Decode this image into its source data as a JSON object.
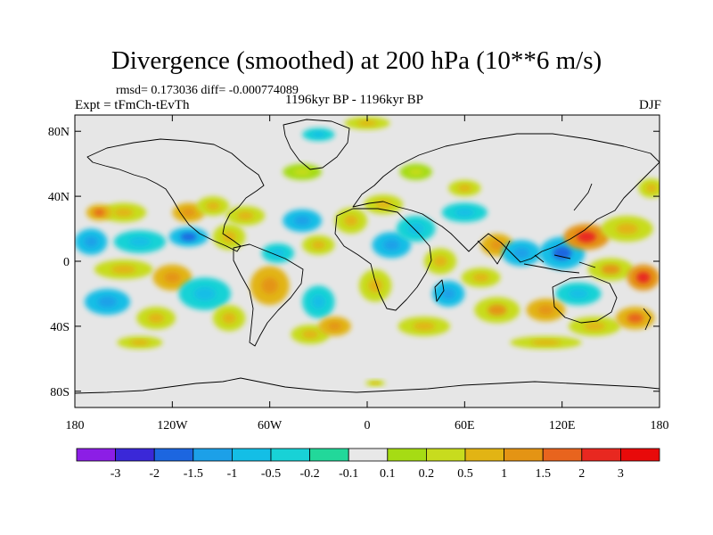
{
  "chart_data": {
    "type": "heatmap",
    "title": "Divergence (smoothed) at 200 hPa (10**6 m/s)",
    "stats_line": "rmsd= 0.173036 diff= -0.000774089",
    "left_label": "Expt = tFmCh-tEvTh",
    "center_label": "1196kyr BP - 1196kyr BP",
    "right_label": "DJF",
    "xlim": [
      -180,
      180
    ],
    "ylim": [
      -90,
      90
    ],
    "x_ticks": [
      {
        "value": -180,
        "label": "180"
      },
      {
        "value": -120,
        "label": "120W"
      },
      {
        "value": -60,
        "label": "60W"
      },
      {
        "value": 0,
        "label": "0"
      },
      {
        "value": 60,
        "label": "60E"
      },
      {
        "value": 120,
        "label": "120E"
      },
      {
        "value": 180,
        "label": "180"
      }
    ],
    "y_ticks": [
      {
        "value": 80,
        "label": "80N"
      },
      {
        "value": 40,
        "label": "40N"
      },
      {
        "value": 0,
        "label": "0"
      },
      {
        "value": -40,
        "label": "40S"
      },
      {
        "value": -80,
        "label": "80S"
      }
    ],
    "colorbar": {
      "labels": [
        "-3",
        "-2",
        "-1.5",
        "-1",
        "-0.5",
        "-0.2",
        "-0.1",
        "0.1",
        "0.2",
        "0.5",
        "1",
        "1.5",
        "2",
        "3"
      ],
      "colors": [
        "#8c1ee6",
        "#3a28d8",
        "#1c66e0",
        "#1ca0e8",
        "#14bee6",
        "#18d2d6",
        "#22d89a",
        "#e8e8e8",
        "#a6dc14",
        "#c8dc1e",
        "#e2b414",
        "#e49414",
        "#e8641e",
        "#e82820",
        "#e80a0a"
      ]
    },
    "blobs": [
      {
        "lon": -150,
        "lat": 30,
        "rlon": 14,
        "rlat": 6,
        "value": 0.3
      },
      {
        "lon": -165,
        "lat": 30,
        "rlon": 8,
        "rlat": 5,
        "value": 0.7
      },
      {
        "lon": -110,
        "lat": 30,
        "rlon": 10,
        "rlat": 6,
        "value": 0.6
      },
      {
        "lon": -95,
        "lat": 34,
        "rlon": 10,
        "rlat": 6,
        "value": 0.3
      },
      {
        "lon": -75,
        "lat": 28,
        "rlon": 12,
        "rlat": 6,
        "value": 0.4
      },
      {
        "lon": -170,
        "lat": 12,
        "rlon": 10,
        "rlat": 8,
        "value": -0.6
      },
      {
        "lon": -140,
        "lat": 12,
        "rlon": 16,
        "rlat": 7,
        "value": -0.3
      },
      {
        "lon": -110,
        "lat": 15,
        "rlon": 12,
        "rlat": 6,
        "value": -0.7
      },
      {
        "lon": -85,
        "lat": 15,
        "rlon": 10,
        "rlat": 8,
        "value": 0.3
      },
      {
        "lon": -150,
        "lat": -5,
        "rlon": 18,
        "rlat": 6,
        "value": 0.3
      },
      {
        "lon": -120,
        "lat": -10,
        "rlon": 12,
        "rlat": 8,
        "value": 0.6
      },
      {
        "lon": -100,
        "lat": -20,
        "rlon": 16,
        "rlat": 10,
        "value": -0.4
      },
      {
        "lon": -160,
        "lat": -25,
        "rlon": 14,
        "rlat": 8,
        "value": -0.5
      },
      {
        "lon": -130,
        "lat": -35,
        "rlon": 12,
        "rlat": 7,
        "value": 0.4
      },
      {
        "lon": -85,
        "lat": -35,
        "rlon": 10,
        "rlat": 8,
        "value": 0.3
      },
      {
        "lon": -60,
        "lat": -15,
        "rlon": 12,
        "rlat": 12,
        "value": 0.6
      },
      {
        "lon": -55,
        "lat": 5,
        "rlon": 10,
        "rlat": 6,
        "value": -0.4
      },
      {
        "lon": -40,
        "lat": 25,
        "rlon": 12,
        "rlat": 7,
        "value": -0.5
      },
      {
        "lon": -30,
        "lat": 10,
        "rlon": 10,
        "rlat": 6,
        "value": 0.3
      },
      {
        "lon": -30,
        "lat": -25,
        "rlon": 10,
        "rlat": 10,
        "value": -0.4
      },
      {
        "lon": -35,
        "lat": -45,
        "rlon": 12,
        "rlat": 6,
        "value": 0.4
      },
      {
        "lon": -10,
        "lat": 25,
        "rlon": 10,
        "rlat": 8,
        "value": 0.3
      },
      {
        "lon": 15,
        "lat": 10,
        "rlon": 12,
        "rlat": 8,
        "value": -0.5
      },
      {
        "lon": 5,
        "lat": -15,
        "rlon": 10,
        "rlat": 10,
        "value": 0.3
      },
      {
        "lon": -20,
        "lat": -40,
        "rlon": 10,
        "rlat": 6,
        "value": 0.6
      },
      {
        "lon": 10,
        "lat": 35,
        "rlon": 12,
        "rlat": 6,
        "value": 0.3
      },
      {
        "lon": 30,
        "lat": 20,
        "rlon": 12,
        "rlat": 8,
        "value": -0.3
      },
      {
        "lon": 45,
        "lat": 0,
        "rlon": 10,
        "rlat": 8,
        "value": 0.4
      },
      {
        "lon": 50,
        "lat": -20,
        "rlon": 10,
        "rlat": 8,
        "value": -0.5
      },
      {
        "lon": 35,
        "lat": -40,
        "rlon": 16,
        "rlat": 6,
        "value": 0.3
      },
      {
        "lon": 60,
        "lat": 30,
        "rlon": 14,
        "rlat": 6,
        "value": -0.3
      },
      {
        "lon": 80,
        "lat": 10,
        "rlon": 10,
        "rlat": 7,
        "value": 0.6
      },
      {
        "lon": 70,
        "lat": -10,
        "rlon": 12,
        "rlat": 6,
        "value": 0.3
      },
      {
        "lon": 95,
        "lat": 5,
        "rlon": 12,
        "rlat": 8,
        "value": -0.6
      },
      {
        "lon": 80,
        "lat": -30,
        "rlon": 14,
        "rlat": 8,
        "value": 0.5
      },
      {
        "lon": 120,
        "lat": 5,
        "rlon": 14,
        "rlat": 10,
        "value": -0.8
      },
      {
        "lon": 135,
        "lat": 15,
        "rlon": 14,
        "rlat": 8,
        "value": 1.1
      },
      {
        "lon": 160,
        "lat": 20,
        "rlon": 16,
        "rlat": 8,
        "value": 0.4
      },
      {
        "lon": 150,
        "lat": -5,
        "rlon": 14,
        "rlat": 7,
        "value": 0.5
      },
      {
        "lon": 170,
        "lat": -10,
        "rlon": 10,
        "rlat": 8,
        "value": 1.2
      },
      {
        "lon": 130,
        "lat": -20,
        "rlon": 14,
        "rlat": 7,
        "value": -0.4
      },
      {
        "lon": 110,
        "lat": -30,
        "rlon": 12,
        "rlat": 7,
        "value": 0.6
      },
      {
        "lon": 140,
        "lat": -40,
        "rlon": 16,
        "rlat": 6,
        "value": 0.3
      },
      {
        "lon": 165,
        "lat": -35,
        "rlon": 12,
        "rlat": 7,
        "value": 0.9
      },
      {
        "lon": 110,
        "lat": -50,
        "rlon": 22,
        "rlat": 4,
        "value": 0.3
      },
      {
        "lon": -140,
        "lat": -50,
        "rlon": 14,
        "rlat": 4,
        "value": 0.3
      },
      {
        "lon": 0,
        "lat": 85,
        "rlon": 14,
        "rlat": 4,
        "value": 0.3
      },
      {
        "lon": -30,
        "lat": 78,
        "rlon": 10,
        "rlat": 4,
        "value": -0.3
      },
      {
        "lon": -40,
        "lat": 55,
        "rlon": 12,
        "rlat": 5,
        "value": 0.2
      },
      {
        "lon": 30,
        "lat": 55,
        "rlon": 10,
        "rlat": 5,
        "value": 0.2
      },
      {
        "lon": 60,
        "lat": 45,
        "rlon": 10,
        "rlat": 5,
        "value": 0.3
      },
      {
        "lon": 175,
        "lat": 45,
        "rlon": 8,
        "rlat": 6,
        "value": 0.3
      },
      {
        "lon": 5,
        "lat": -75,
        "rlon": 6,
        "rlat": 2,
        "value": 0.3
      }
    ]
  }
}
